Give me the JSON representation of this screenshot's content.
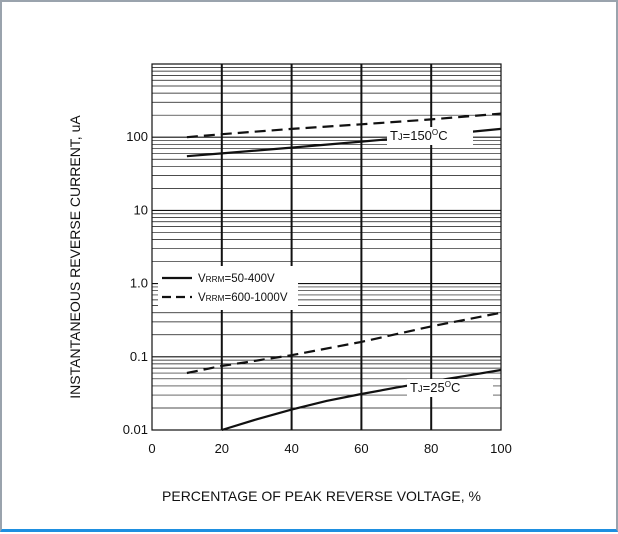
{
  "colors": {
    "frame": "#9aa3ad",
    "frame_accent": "#1e8fe0",
    "ink": "#111111"
  },
  "chart_data": {
    "type": "line",
    "title": "",
    "xlabel": "PERCENTAGE OF PEAK REVERSE VOLTAGE, %",
    "ylabel": "INSTANTANEOUS REVERSE CURRENT, uA",
    "xlim": [
      0,
      100
    ],
    "ylim": [
      0.01,
      1000
    ],
    "yscale": "log",
    "grid": true,
    "xticks": [
      0,
      20,
      40,
      60,
      80,
      100
    ],
    "xtick_labels": [
      "0",
      "20",
      "40",
      "60",
      "80",
      "100"
    ],
    "yticks": [
      0.01,
      0.1,
      1.0,
      10,
      100
    ],
    "ytick_labels": [
      "0.01",
      "0.1",
      "1.0",
      "10",
      "100"
    ],
    "legend": {
      "placement": "center-left",
      "entries": [
        {
          "main": "V",
          "sub": "RRM",
          "rest": "=50-400V",
          "style": "solid"
        },
        {
          "main": "V",
          "sub": "RRM",
          "rest": "=600-1000V",
          "style": "dashed"
        }
      ]
    },
    "annotations": [
      {
        "main": "T",
        "sub": "J",
        "mid": "=150",
        "sup": "O",
        "end": "C"
      },
      {
        "main": "T",
        "sub": "J",
        "mid": "=25",
        "sup": "O",
        "end": "C"
      }
    ],
    "series": [
      {
        "group": "150C",
        "style": "solid",
        "x": [
          10,
          20,
          40,
          60,
          80,
          100
        ],
        "y": [
          55,
          60,
          72,
          87,
          105,
          130
        ]
      },
      {
        "group": "150C",
        "style": "dashed",
        "x": [
          10,
          20,
          40,
          60,
          80,
          100
        ],
        "y": [
          100,
          110,
          130,
          150,
          175,
          210
        ]
      },
      {
        "group": "25C",
        "style": "solid",
        "x": [
          20,
          30,
          40,
          50,
          60,
          70,
          80,
          90,
          100
        ],
        "y": [
          0.01,
          0.014,
          0.019,
          0.025,
          0.031,
          0.038,
          0.046,
          0.055,
          0.066
        ]
      },
      {
        "group": "25C",
        "style": "dashed",
        "x": [
          10,
          20,
          40,
          60,
          80,
          100
        ],
        "y": [
          0.06,
          0.075,
          0.105,
          0.16,
          0.26,
          0.4
        ]
      }
    ]
  }
}
